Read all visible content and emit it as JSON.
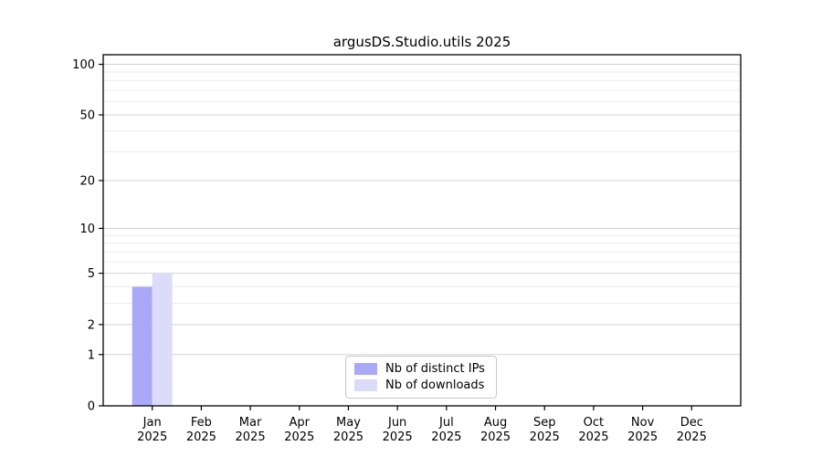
{
  "chart_data": {
    "type": "bar",
    "title": "argusDS.Studio.utils 2025",
    "categories": [
      {
        "month": "Jan",
        "year": "2025"
      },
      {
        "month": "Feb",
        "year": "2025"
      },
      {
        "month": "Mar",
        "year": "2025"
      },
      {
        "month": "Apr",
        "year": "2025"
      },
      {
        "month": "May",
        "year": "2025"
      },
      {
        "month": "Jun",
        "year": "2025"
      },
      {
        "month": "Jul",
        "year": "2025"
      },
      {
        "month": "Aug",
        "year": "2025"
      },
      {
        "month": "Sep",
        "year": "2025"
      },
      {
        "month": "Oct",
        "year": "2025"
      },
      {
        "month": "Nov",
        "year": "2025"
      },
      {
        "month": "Dec",
        "year": "2025"
      }
    ],
    "series": [
      {
        "name": "Nb of distinct IPs",
        "color": "#a9a9f7",
        "values": [
          4,
          0,
          0,
          0,
          0,
          0,
          0,
          0,
          0,
          0,
          0,
          0
        ]
      },
      {
        "name": "Nb of downloads",
        "color": "#dcdcfa",
        "values": [
          5,
          0,
          0,
          0,
          0,
          0,
          0,
          0,
          0,
          0,
          0,
          0
        ]
      }
    ],
    "y_axis": {
      "scale": "log10(1+x)",
      "ticks": [
        0,
        1,
        2,
        5,
        10,
        20,
        50,
        100
      ],
      "minor_ticks": [
        3,
        4,
        6,
        7,
        8,
        9,
        30,
        40,
        60,
        70,
        80,
        90
      ],
      "max": 114
    },
    "xlabel": "",
    "ylabel": "",
    "legend": {
      "position": "bottom-center"
    },
    "grid": {
      "major_color": "#d3d3d3",
      "minor_color": "#ececec"
    },
    "axis_color": "#000000",
    "text_color": "#000000",
    "background": "#ffffff"
  }
}
